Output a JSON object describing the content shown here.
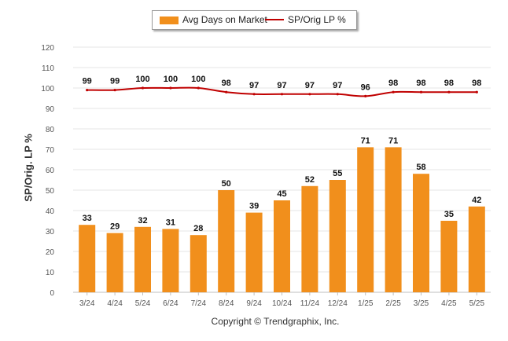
{
  "legend": {
    "series1_label": "Avg Days on Market",
    "series2_label": "SP/Orig LP %"
  },
  "colors": {
    "bar": "#F18F1C",
    "line": "#C00000",
    "grid": "#e6e6e6",
    "axis_text": "#555555"
  },
  "copyright": "Copyright © Trendgraphix, Inc.",
  "chart_data": {
    "type": "bar",
    "ylabel": "SP/Orig. LP %",
    "xlabel": "",
    "ylim": [
      0,
      120
    ],
    "yticks": [
      0,
      10,
      20,
      30,
      40,
      50,
      60,
      70,
      80,
      90,
      100,
      110,
      120
    ],
    "grid": true,
    "legend_position": "top-center",
    "categories": [
      "3/24",
      "4/24",
      "5/24",
      "6/24",
      "7/24",
      "8/24",
      "9/24",
      "10/24",
      "11/24",
      "12/24",
      "1/25",
      "2/25",
      "3/25",
      "4/25",
      "5/25"
    ],
    "series": [
      {
        "name": "Avg Days on Market",
        "type": "bar",
        "values": [
          33,
          29,
          32,
          31,
          28,
          50,
          39,
          45,
          52,
          55,
          71,
          71,
          58,
          35,
          42
        ]
      },
      {
        "name": "SP/Orig LP %",
        "type": "line",
        "values": [
          99,
          99,
          100,
          100,
          100,
          98,
          97,
          97,
          97,
          97,
          96,
          98,
          98,
          98,
          98
        ]
      }
    ]
  }
}
